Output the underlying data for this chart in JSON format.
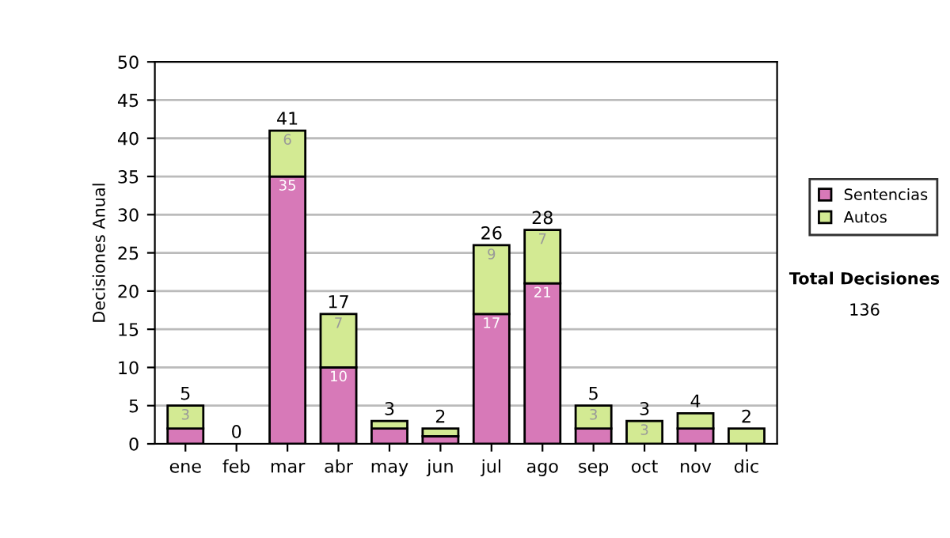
{
  "chart_data": {
    "type": "bar",
    "stacked": true,
    "ylabel": "Decisiones Anual",
    "categories": [
      "ene",
      "feb",
      "mar",
      "abr",
      "may",
      "jun",
      "jul",
      "ago",
      "sep",
      "oct",
      "nov",
      "dic"
    ],
    "series": [
      {
        "name": "Sentencias",
        "color": "#d779b8",
        "values": [
          2,
          0,
          35,
          10,
          2,
          1,
          17,
          21,
          2,
          0,
          2,
          0
        ],
        "value_labels": [
          null,
          null,
          "35",
          "10",
          null,
          null,
          "17",
          "21",
          null,
          null,
          null,
          null
        ]
      },
      {
        "name": "Autos",
        "color": "#d3ea93",
        "values": [
          3,
          0,
          6,
          7,
          1,
          1,
          9,
          7,
          3,
          3,
          2,
          2
        ],
        "value_labels": [
          "3",
          null,
          "6",
          "7",
          null,
          null,
          "9",
          "7",
          "3",
          "3",
          null,
          null
        ]
      }
    ],
    "totals": [
      "5",
      "0",
      "41",
      "17",
      "3",
      "2",
      "26",
      "28",
      "5",
      "3",
      "4",
      "2"
    ],
    "ylim": [
      0,
      50
    ],
    "yticks": [
      0,
      5,
      10,
      15,
      20,
      25,
      30,
      35,
      40,
      45,
      50
    ],
    "grid": "y",
    "legend": "right",
    "annotations": [
      "Total Decisiones",
      "136"
    ]
  }
}
